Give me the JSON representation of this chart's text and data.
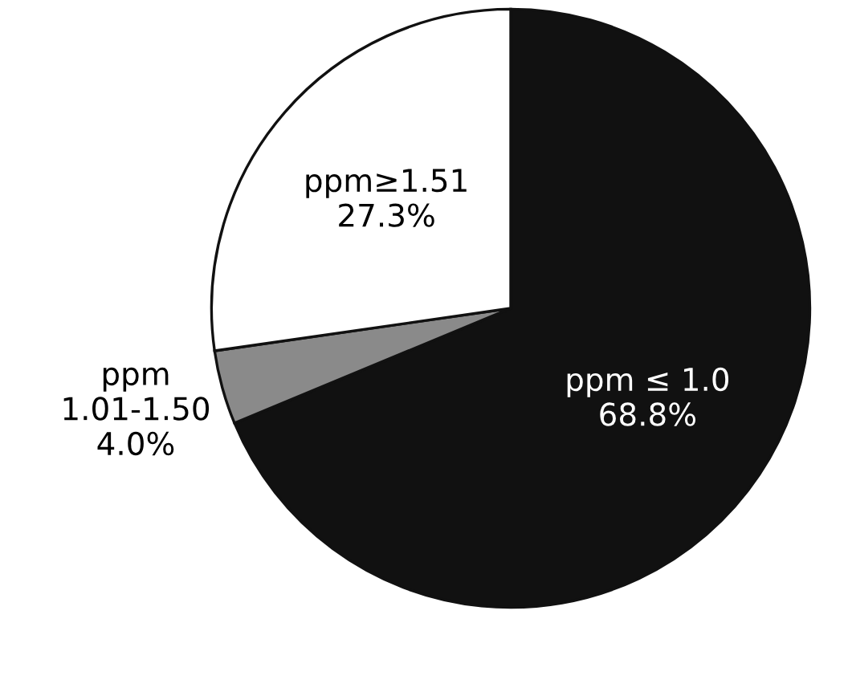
{
  "chart_data": {
    "type": "pie",
    "categories": [
      "ppm ≤ 1.0",
      "ppm\n1.01-1.50",
      "ppm≥1.51"
    ],
    "values": [
      68.8,
      4.0,
      27.3
    ],
    "colors": [
      "#111111",
      "#8a8a8a",
      "#ffffff"
    ],
    "value_labels": [
      "68.8%",
      "4.0%",
      "27.3%"
    ],
    "legend": false
  }
}
